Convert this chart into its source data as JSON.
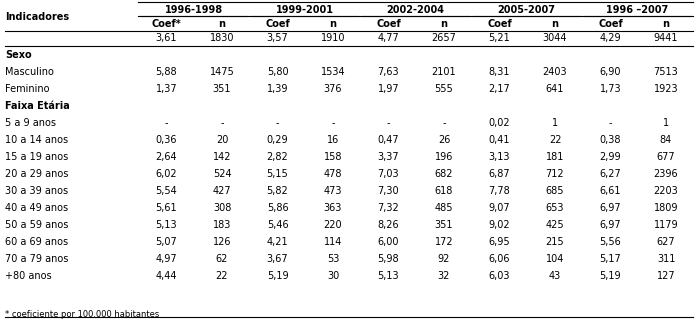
{
  "col_groups": [
    "1996-1998",
    "1999-2001",
    "2002-2004",
    "2005-2007",
    "1996 –2007"
  ],
  "col_headers": [
    "Coef*",
    "n",
    "Coef",
    "n",
    "Coef",
    "n",
    "Coef",
    "n",
    "Coef",
    "n"
  ],
  "row_label_col": "Indicadores",
  "rows": [
    {
      "label": "",
      "values": [
        "3,61",
        "1830",
        "3,57",
        "1910",
        "4,77",
        "2657",
        "5,21",
        "3044",
        "4,29",
        "9441"
      ],
      "bold": false
    },
    {
      "label": "Sexo",
      "values": [],
      "bold": true
    },
    {
      "label": "Masculino",
      "values": [
        "5,88",
        "1475",
        "5,80",
        "1534",
        "7,63",
        "2101",
        "8,31",
        "2403",
        "6,90",
        "7513"
      ],
      "bold": false
    },
    {
      "label": "Feminino",
      "values": [
        "1,37",
        "351",
        "1,39",
        "376",
        "1,97",
        "555",
        "2,17",
        "641",
        "1,73",
        "1923"
      ],
      "bold": false
    },
    {
      "label": "Faixa Etária",
      "values": [],
      "bold": true
    },
    {
      "label": "5 a 9 anos",
      "values": [
        "-",
        "-",
        "-",
        "-",
        "-",
        "-",
        "0,02",
        "1",
        "-",
        "1"
      ],
      "bold": false
    },
    {
      "label": "10 a 14 anos",
      "values": [
        "0,36",
        "20",
        "0,29",
        "16",
        "0,47",
        "26",
        "0,41",
        "22",
        "0,38",
        "84"
      ],
      "bold": false
    },
    {
      "label": "15 a 19 anos",
      "values": [
        "2,64",
        "142",
        "2,82",
        "158",
        "3,37",
        "196",
        "3,13",
        "181",
        "2,99",
        "677"
      ],
      "bold": false
    },
    {
      "label": "20 a 29 anos",
      "values": [
        "6,02",
        "524",
        "5,15",
        "478",
        "7,03",
        "682",
        "6,87",
        "712",
        "6,27",
        "2396"
      ],
      "bold": false
    },
    {
      "label": "30 a 39 anos",
      "values": [
        "5,54",
        "427",
        "5,82",
        "473",
        "7,30",
        "618",
        "7,78",
        "685",
        "6,61",
        "2203"
      ],
      "bold": false
    },
    {
      "label": "40 a 49 anos",
      "values": [
        "5,61",
        "308",
        "5,86",
        "363",
        "7,32",
        "485",
        "9,07",
        "653",
        "6,97",
        "1809"
      ],
      "bold": false
    },
    {
      "label": "50 a 59 anos",
      "values": [
        "5,13",
        "183",
        "5,46",
        "220",
        "8,26",
        "351",
        "9,02",
        "425",
        "6,97",
        "1179"
      ],
      "bold": false
    },
    {
      "label": "60 a 69 anos",
      "values": [
        "5,07",
        "126",
        "4,21",
        "114",
        "6,00",
        "172",
        "6,95",
        "215",
        "5,56",
        "627"
      ],
      "bold": false
    },
    {
      "label": "70 a 79 anos",
      "values": [
        "4,97",
        "62",
        "3,67",
        "53",
        "5,98",
        "92",
        "6,06",
        "104",
        "5,17",
        "311"
      ],
      "bold": false
    },
    {
      "label": "+80 anos",
      "values": [
        "4,44",
        "22",
        "5,19",
        "30",
        "5,13",
        "32",
        "6,03",
        "43",
        "5,19",
        "127"
      ],
      "bold": false
    }
  ],
  "footnote": "* coeficiente por 100.000 habitantes",
  "bg_color": "#ffffff",
  "line_color": "#000000",
  "text_color": "#000000",
  "font_size": 7.0,
  "bold_font_size": 7.0
}
